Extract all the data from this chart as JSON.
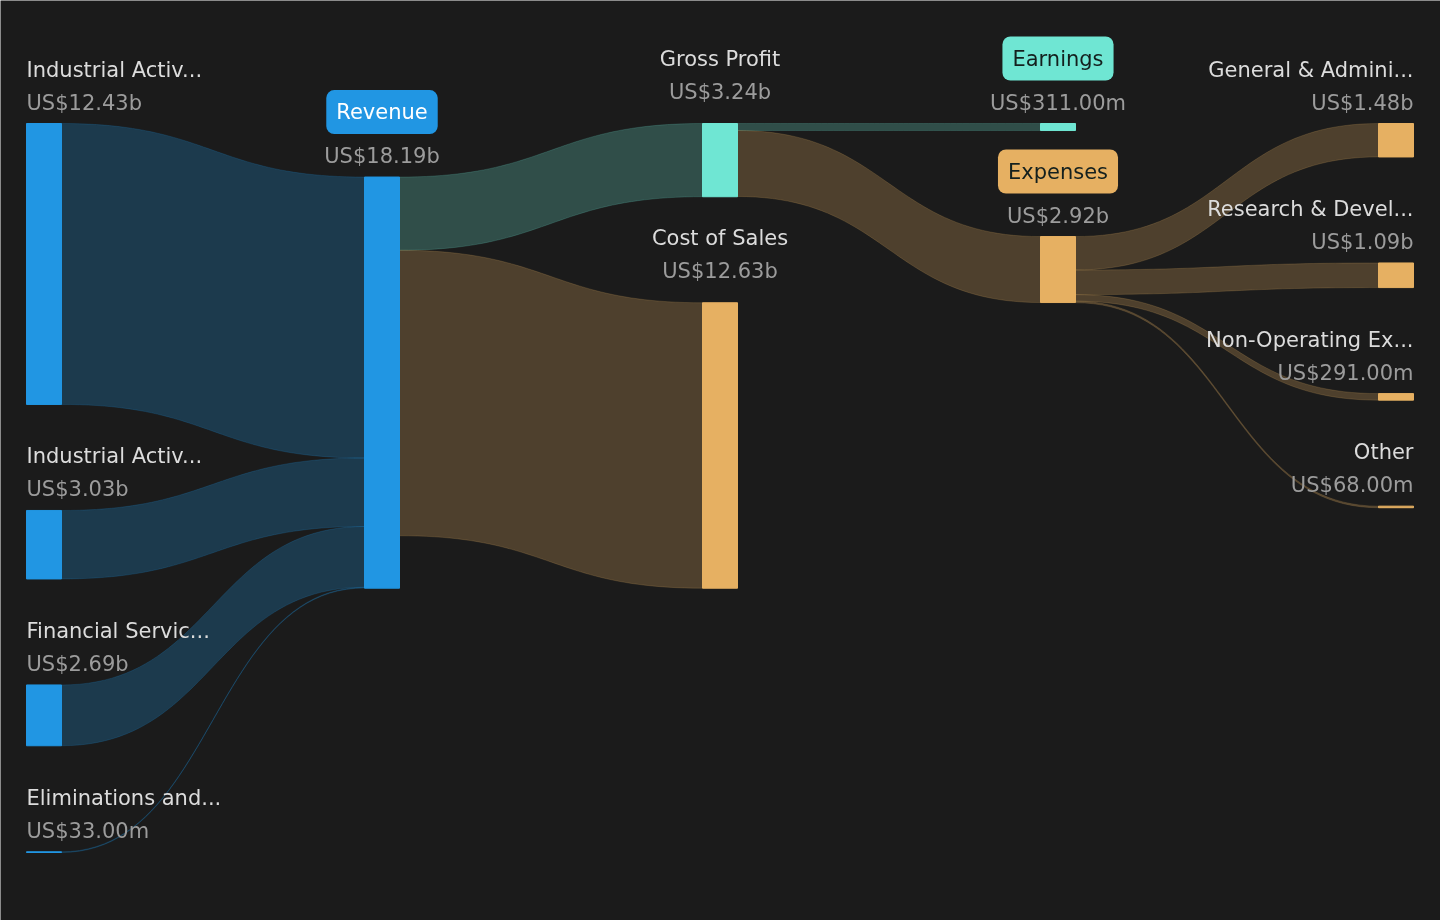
{
  "chart_data": {
    "type": "other",
    "categories": [
      "Industrial Activ...",
      "Industrial Activ...",
      "Financial Servic...",
      "Eliminations and...",
      "Revenue",
      "Gross Profit",
      "Cost of Sales",
      "Earnings",
      "Expenses",
      "General & Admini...",
      "Research & Devel...",
      "Non-Operating Ex...",
      "Other"
    ],
    "colors": [
      "#2196e3",
      "#2196e3",
      "#2196e3",
      "#2196e3",
      "#2196e3",
      "#6fe6d3",
      "#e6b062",
      "#6fe6d3",
      "#e6b062",
      "#e6b062",
      "#e6b062",
      "#e6b062",
      "#e6b062"
    ],
    "series": [
      {
        "values": [
          12430000000,
          3030000000,
          2690000000,
          33000000,
          null,
          null,
          null,
          null,
          null,
          null,
          null,
          null,
          null
        ],
        "value_labels": [
          "US$12.43b",
          "US$3.03b",
          "US$2.69b",
          "US$33.00m",
          null,
          null,
          null,
          null,
          null,
          null,
          null,
          null,
          null
        ]
      },
      {
        "values": [
          null,
          null,
          null,
          null,
          18190000000,
          null,
          null,
          null,
          null,
          null,
          null,
          null,
          null
        ],
        "value_labels": [
          null,
          null,
          null,
          null,
          "US$18.19b",
          null,
          null,
          null,
          null,
          null,
          null,
          null,
          null
        ]
      },
      {
        "values": [
          null,
          null,
          null,
          null,
          null,
          3240000000,
          12630000000,
          null,
          null,
          null,
          null,
          null,
          null
        ],
        "value_labels": [
          null,
          null,
          null,
          null,
          null,
          "US$3.24b",
          "US$12.63b",
          null,
          null,
          null,
          null,
          null,
          null
        ]
      },
      {
        "values": [
          null,
          null,
          null,
          null,
          null,
          null,
          null,
          311000000,
          2920000000,
          null,
          null,
          null,
          null
        ],
        "value_labels": [
          null,
          null,
          null,
          null,
          null,
          null,
          null,
          "US$311.00m",
          "US$2.92b",
          null,
          null,
          null,
          null
        ]
      },
      {
        "values": [
          null,
          null,
          null,
          null,
          null,
          null,
          null,
          null,
          null,
          1480000000,
          1090000000,
          291000000,
          68000000
        ],
        "value_labels": [
          null,
          null,
          null,
          null,
          null,
          null,
          null,
          null,
          null,
          "US$1.48b",
          "US$1.09b",
          "US$291.00m",
          "US$68.00m"
        ]
      }
    ]
  }
}
